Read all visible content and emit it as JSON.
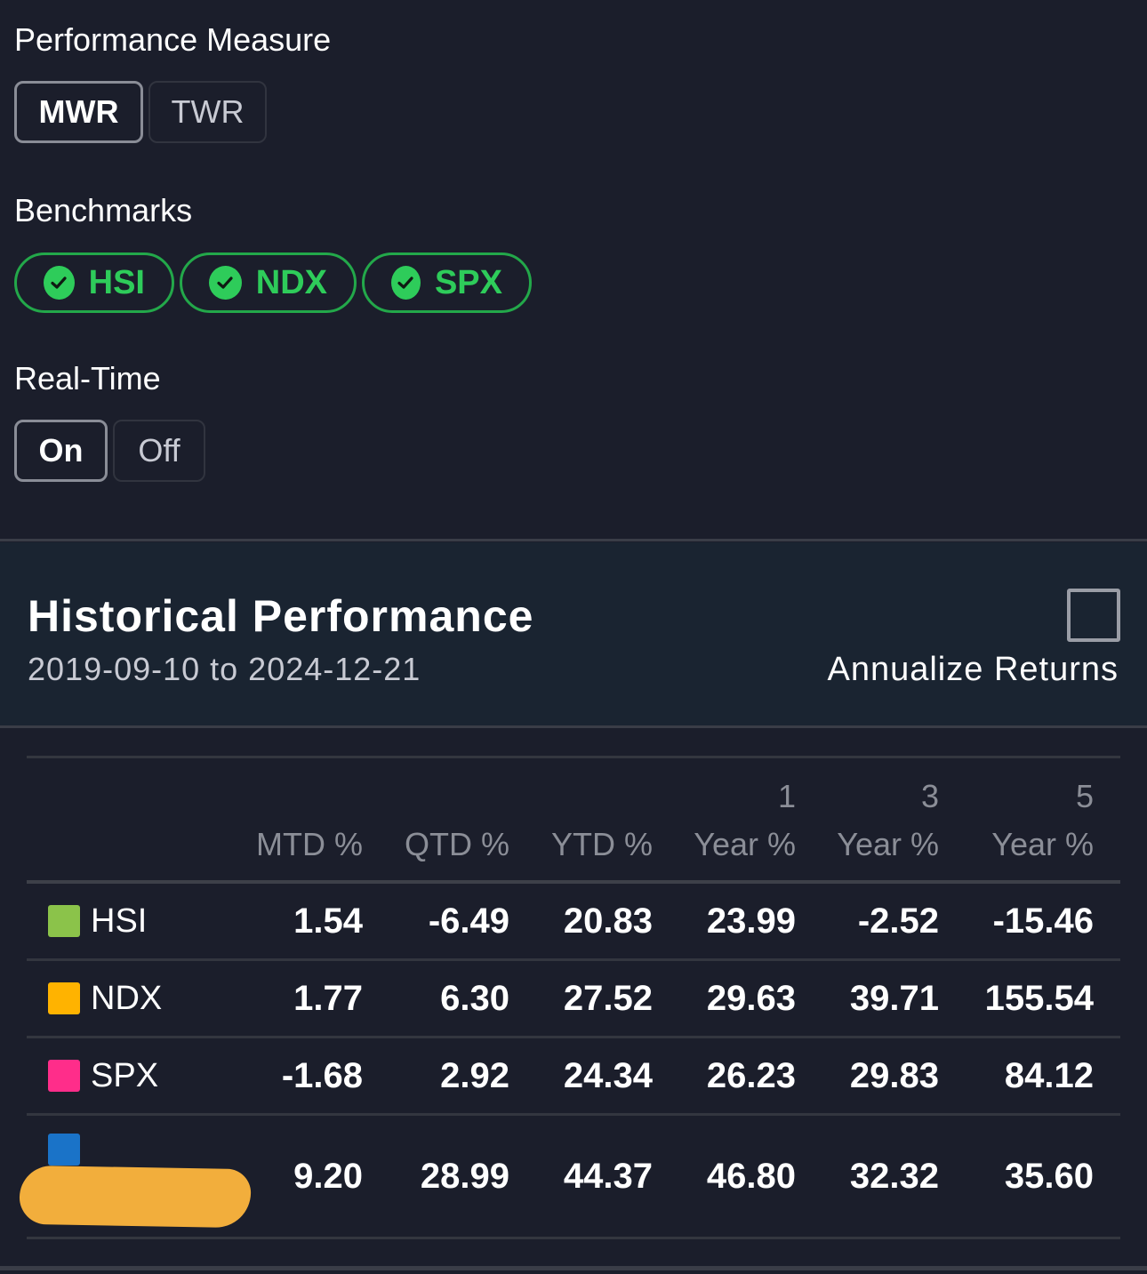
{
  "performance_measure": {
    "label": "Performance Measure",
    "options": [
      {
        "label": "MWR",
        "active": true
      },
      {
        "label": "TWR",
        "active": false
      }
    ]
  },
  "benchmarks": {
    "label": "Benchmarks",
    "chips": [
      "HSI",
      "NDX",
      "SPX"
    ],
    "chip_color": "#2ecc5a"
  },
  "real_time": {
    "label": "Real-Time",
    "options": [
      {
        "label": "On",
        "active": true
      },
      {
        "label": "Off",
        "active": false
      }
    ]
  },
  "historical": {
    "title": "Historical Performance",
    "range": "2019-09-10 to 2024-12-21",
    "annualize_label": "Annualize Returns",
    "annualize_checked": false,
    "columns": [
      {
        "line1": "",
        "line2": "MTD %"
      },
      {
        "line1": "",
        "line2": "QTD %"
      },
      {
        "line1": "",
        "line2": "YTD %"
      },
      {
        "line1": "1",
        "line2": "Year %"
      },
      {
        "line1": "3",
        "line2": "Year %"
      },
      {
        "line1": "5",
        "line2": "Year %"
      }
    ],
    "rows": [
      {
        "name": "HSI",
        "color": "#8bc34a",
        "values": [
          "1.54",
          "-6.49",
          "20.83",
          "23.99",
          "-2.52",
          "-15.46"
        ]
      },
      {
        "name": "NDX",
        "color": "#ffb300",
        "values": [
          "1.77",
          "6.30",
          "27.52",
          "29.63",
          "39.71",
          "155.54"
        ]
      },
      {
        "name": "SPX",
        "color": "#ff2d8a",
        "values": [
          "-1.68",
          "2.92",
          "24.34",
          "26.23",
          "29.83",
          "84.12"
        ]
      },
      {
        "name": "",
        "color": "#1a73c8",
        "redacted": true,
        "values": [
          "9.20",
          "28.99",
          "44.37",
          "46.80",
          "32.32",
          "35.60"
        ]
      }
    ]
  }
}
